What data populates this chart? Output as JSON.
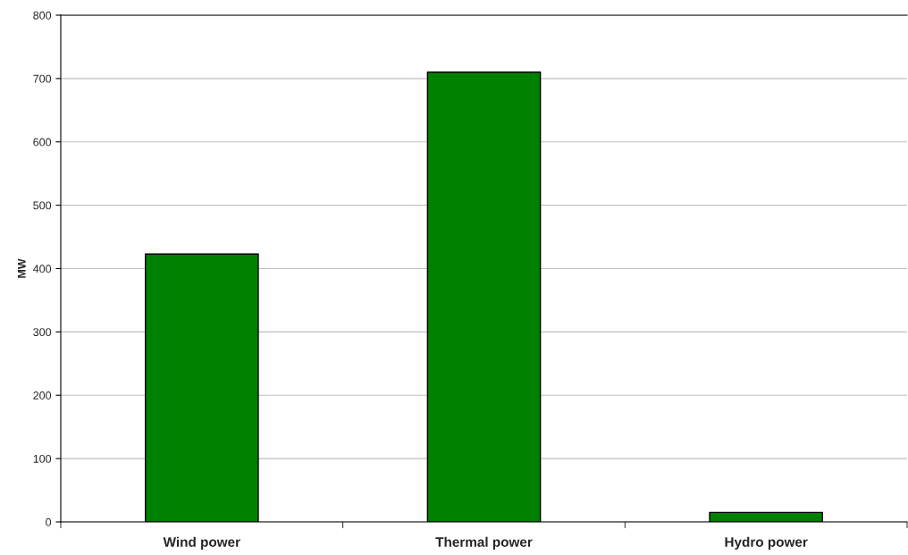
{
  "chart_data": {
    "type": "bar",
    "ylabel": "MW",
    "categories": [
      "Wind power",
      "Thermal power",
      "Hydro power"
    ],
    "values": [
      423,
      710,
      15
    ],
    "color": "#008000",
    "ylim": [
      0,
      800
    ],
    "yticks": [
      0,
      100,
      200,
      300,
      400,
      500,
      600,
      700,
      800
    ],
    "grid": "y"
  }
}
